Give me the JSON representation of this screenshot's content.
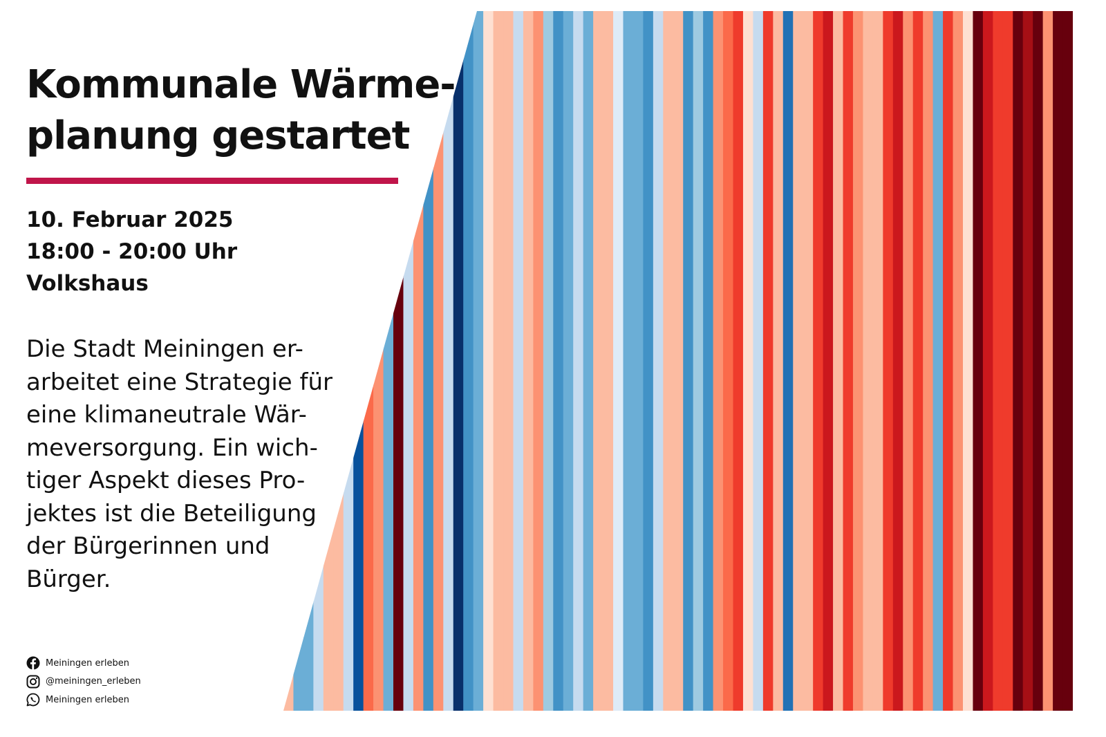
{
  "title_lines": [
    "Kommunale Wärme-",
    "planung gestartet"
  ],
  "accent_color": "#c0154a",
  "event": {
    "date": "10. Februar 2025",
    "time": "18:00 - 20:00 Uhr",
    "location": "Volkshaus"
  },
  "description_lines": [
    "Die Stadt Meiningen er-",
    "arbeitet eine Strategie für",
    "eine klimaneutrale Wär-",
    "meversorgung. Ein wich-",
    "tiger Aspekt dieses Pro-",
    "jektes ist die Beteiligung",
    "der Bürgerinnen und",
    "Bürger."
  ],
  "social": [
    {
      "icon": "facebook-icon",
      "label": "Meiningen erleben"
    },
    {
      "icon": "instagram-icon",
      "label": "@meiningen_erleben"
    },
    {
      "icon": "whatsapp-icon",
      "label": "Meiningen erleben"
    }
  ],
  "stripe_colors": [
    "#fcbba1",
    "#6baed6",
    "#6baed6",
    "#c6dbef",
    "#fcbba1",
    "#fcbba1",
    "#c6dbef",
    "#08519c",
    "#fb6a4a",
    "#fc9272",
    "#6baed6",
    "#67000d",
    "#c6dbef",
    "#fc9272",
    "#4292c6",
    "#fc9272",
    "#c6dbef",
    "#08306b",
    "#4292c6",
    "#6baed6",
    "#fee0d2",
    "#fcbba1",
    "#fcbba1",
    "#c6dbef",
    "#fcbba1",
    "#fc9272",
    "#9ecae1",
    "#4292c6",
    "#6baed6",
    "#c6dbef",
    "#6baed6",
    "#fcbba1",
    "#fcbba1",
    "#deebf7",
    "#6baed6",
    "#6baed6",
    "#4292c6",
    "#c6dbef",
    "#fcbba1",
    "#fcbba1",
    "#4292c6",
    "#9ecae1",
    "#4292c6",
    "#fc9272",
    "#fb6a4a",
    "#ef3b2c",
    "#fee0d2",
    "#c6dbef",
    "#ef3b2c",
    "#fcbba1",
    "#2171b5",
    "#fcbba1",
    "#fcbba1",
    "#ef3b2c",
    "#cb181d",
    "#fcbba1",
    "#ef3b2c",
    "#fc9272",
    "#fcbba1",
    "#fcbba1",
    "#ef3b2c",
    "#cb181d",
    "#fc9272",
    "#ef3b2c",
    "#fc9272",
    "#6baed6",
    "#ef3b2c",
    "#fc9272",
    "#fee0d2",
    "#67000d",
    "#cb181d",
    "#ef3b2c",
    "#ef3b2c",
    "#67000d",
    "#a50f15",
    "#67000d",
    "#fc9272",
    "#67000d",
    "#67000d"
  ]
}
